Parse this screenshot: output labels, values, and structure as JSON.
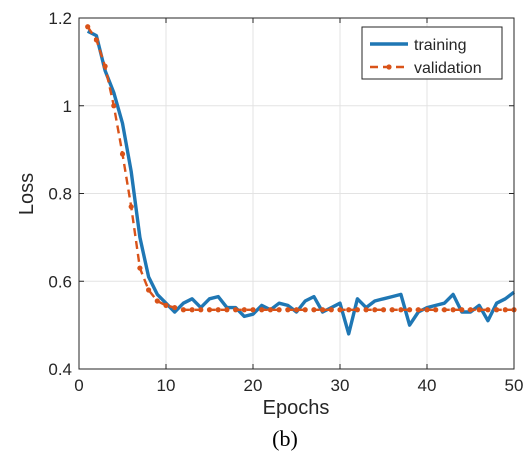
{
  "chart_data": {
    "type": "line",
    "caption": "(b)",
    "xlabel": "Epochs",
    "ylabel": "Loss",
    "xlim": [
      0,
      50
    ],
    "ylim": [
      0.4,
      1.2
    ],
    "x_ticks": [
      0,
      10,
      20,
      30,
      40,
      50
    ],
    "y_ticks": [
      0.4,
      0.6,
      0.8,
      1.0,
      1.2
    ],
    "x_tick_labels": [
      "0",
      "10",
      "20",
      "30",
      "40",
      "50"
    ],
    "y_tick_labels": [
      "0.4",
      "0.6",
      "0.8",
      "1",
      "1.2"
    ],
    "grid": true,
    "legend_position": "top-right",
    "series": [
      {
        "name": "training",
        "color": "#1f77b4",
        "style": "solid",
        "x": [
          1,
          2,
          3,
          4,
          5,
          6,
          7,
          8,
          9,
          10,
          11,
          12,
          13,
          14,
          15,
          16,
          17,
          18,
          19,
          20,
          21,
          22,
          23,
          24,
          25,
          26,
          27,
          28,
          29,
          30,
          31,
          32,
          33,
          34,
          35,
          36,
          37,
          38,
          39,
          40,
          41,
          42,
          43,
          44,
          45,
          46,
          47,
          48,
          49,
          50
        ],
        "y": [
          1.17,
          1.16,
          1.08,
          1.03,
          0.96,
          0.85,
          0.7,
          0.61,
          0.57,
          0.55,
          0.53,
          0.55,
          0.56,
          0.54,
          0.56,
          0.565,
          0.54,
          0.54,
          0.52,
          0.525,
          0.545,
          0.535,
          0.55,
          0.545,
          0.53,
          0.555,
          0.565,
          0.53,
          0.54,
          0.55,
          0.48,
          0.56,
          0.54,
          0.555,
          0.56,
          0.565,
          0.57,
          0.5,
          0.53,
          0.54,
          0.545,
          0.55,
          0.57,
          0.53,
          0.53,
          0.545,
          0.51,
          0.55,
          0.56,
          0.575
        ]
      },
      {
        "name": "validation",
        "color": "#d95319",
        "style": "dashed",
        "x": [
          1,
          2,
          3,
          4,
          5,
          6,
          7,
          8,
          9,
          10,
          11,
          12,
          13,
          14,
          15,
          16,
          17,
          18,
          19,
          20,
          21,
          22,
          23,
          24,
          25,
          26,
          27,
          28,
          29,
          30,
          31,
          32,
          33,
          34,
          35,
          36,
          37,
          38,
          39,
          40,
          41,
          42,
          43,
          44,
          45,
          46,
          47,
          48,
          49,
          50
        ],
        "y": [
          1.18,
          1.15,
          1.09,
          1.0,
          0.89,
          0.77,
          0.63,
          0.58,
          0.555,
          0.545,
          0.54,
          0.535,
          0.535,
          0.535,
          0.535,
          0.535,
          0.535,
          0.535,
          0.535,
          0.535,
          0.535,
          0.535,
          0.535,
          0.535,
          0.535,
          0.535,
          0.535,
          0.535,
          0.535,
          0.535,
          0.535,
          0.535,
          0.535,
          0.535,
          0.535,
          0.535,
          0.535,
          0.535,
          0.535,
          0.535,
          0.535,
          0.535,
          0.535,
          0.535,
          0.535,
          0.535,
          0.535,
          0.535,
          0.535,
          0.535
        ]
      }
    ]
  }
}
